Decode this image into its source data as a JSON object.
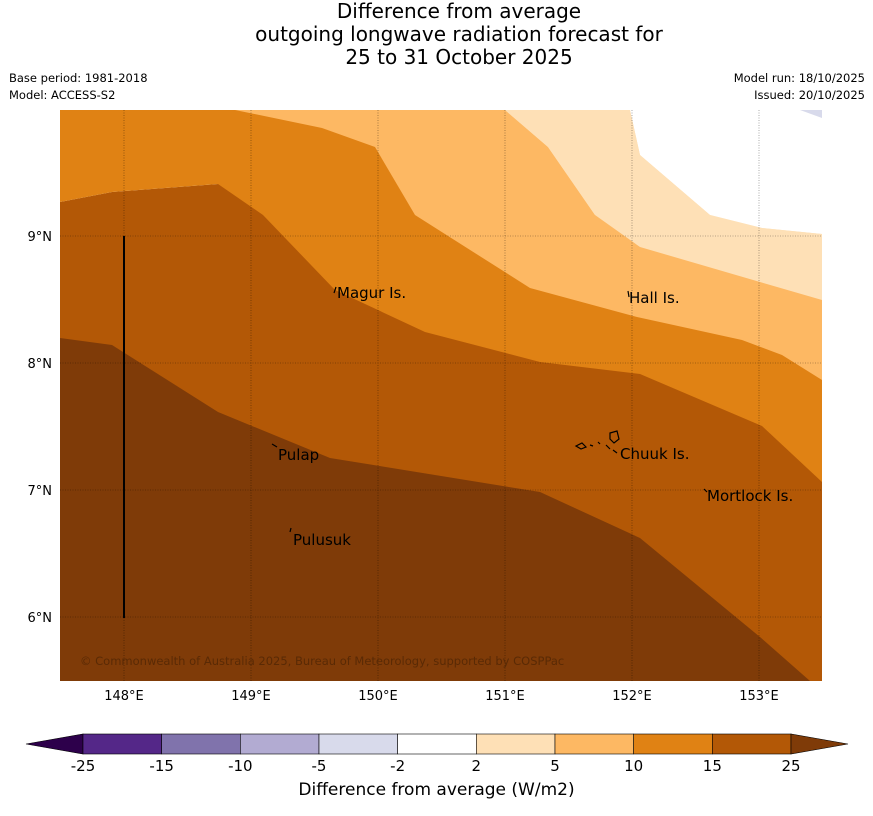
{
  "title": {
    "line1": "Difference from average",
    "line2": "outgoing longwave radiation forecast for",
    "line3": "25 to 31 October 2025"
  },
  "metadata": {
    "base_period": "Base period: 1981-2018",
    "model": "Model: ACCESS-S2",
    "model_run": "Model run: 18/10/2025",
    "issued": "Issued: 20/10/2025"
  },
  "map": {
    "x_ticks": [
      "148°E",
      "149°E",
      "150°E",
      "151°E",
      "152°E",
      "153°E"
    ],
    "y_ticks": [
      "9°N",
      "8°N",
      "7°N",
      "6°N"
    ],
    "places": [
      {
        "name": "Magur Is."
      },
      {
        "name": "Hall Is."
      },
      {
        "name": "Pulap"
      },
      {
        "name": "Chuuk Is."
      },
      {
        "name": "Mortlock Is."
      },
      {
        "name": "Pulusuk"
      }
    ],
    "copyright": "© Commonwealth of Australia 2025, Bureau of Meteorology, supported by COSPPac",
    "colors": {
      "band_25_plus": "#7f3b08",
      "band_15_25": "#b35806",
      "band_10_15": "#e08214",
      "band_5_10": "#fdb863",
      "band_2_5": "#fee0b6",
      "band_neg5_neg2": "#d8daeb"
    }
  },
  "colorbar": {
    "label": "Difference from average (W/m2)",
    "ticks": [
      "-25",
      "-15",
      "-10",
      "-5",
      "-2",
      "2",
      "5",
      "10",
      "15",
      "25"
    ],
    "colors": [
      "#2d004b",
      "#542788",
      "#8073ac",
      "#b2abd2",
      "#d8daeb",
      "#ffffff",
      "#fee0b6",
      "#fdb863",
      "#e08214",
      "#b35806",
      "#7f3b08"
    ]
  }
}
